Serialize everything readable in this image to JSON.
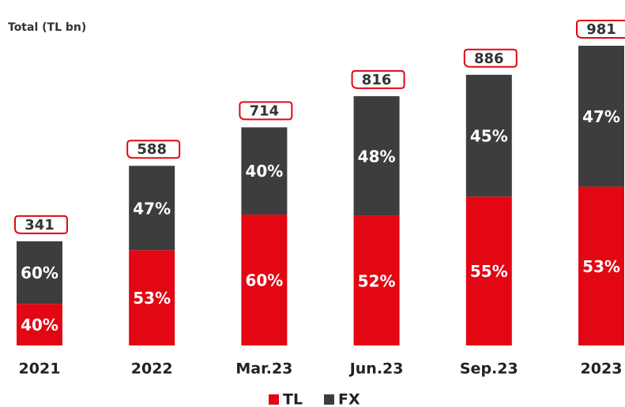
{
  "chart_data": {
    "type": "stacked-percent-bar",
    "title": "Total (TL bn)",
    "categories": [
      "2021",
      "2022",
      "Mar.23",
      "Jun.23",
      "Sep.23",
      "2023"
    ],
    "totals": [
      341,
      588,
      714,
      816,
      886,
      981
    ],
    "series": [
      {
        "name": "TL",
        "color": "#e30613",
        "values": [
          40,
          53,
          60,
          52,
          55,
          53
        ],
        "value_labels": [
          "40%",
          "53%",
          "60%",
          "52%",
          "55%",
          "53%"
        ]
      },
      {
        "name": "FX",
        "color": "#3d3d3d",
        "values": [
          60,
          47,
          40,
          48,
          45,
          47
        ],
        "value_labels": [
          "60%",
          "47%",
          "40%",
          "48%",
          "45%",
          "47%"
        ]
      }
    ],
    "legend": "bottom"
  }
}
